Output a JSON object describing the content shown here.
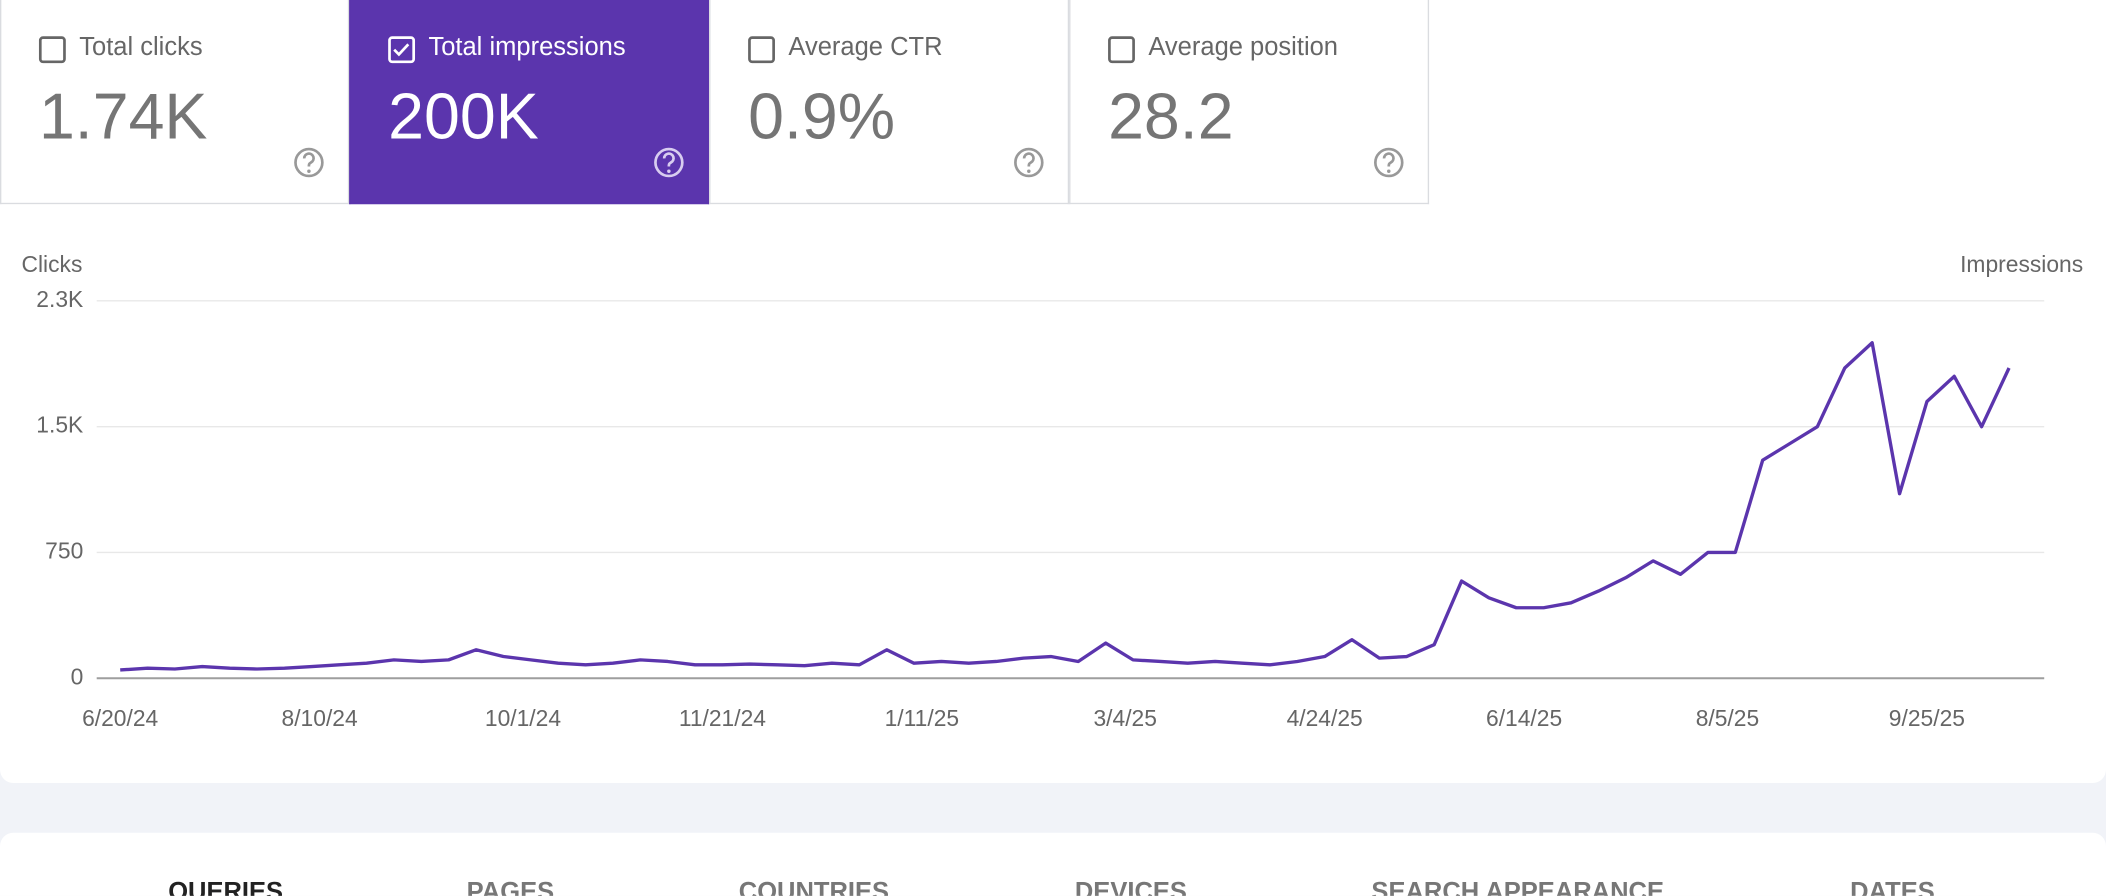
{
  "metrics": [
    {
      "label": "Total clicks",
      "value": "1.74K",
      "selected": false
    },
    {
      "label": "Total impressions",
      "value": "200K",
      "selected": true
    },
    {
      "label": "Average CTR",
      "value": "0.9%",
      "selected": false
    },
    {
      "label": "Average position",
      "value": "28.2",
      "selected": false
    }
  ],
  "chart_data": {
    "type": "line",
    "ylabel": "Clicks",
    "y2label": "Impressions",
    "color": "#5b35ad",
    "x": [
      "6/20/24",
      "6/27/24",
      "7/4/24",
      "7/11/24",
      "7/18/24",
      "7/25/24",
      "8/1/24",
      "8/8/24",
      "8/15/24",
      "8/22/24",
      "8/29/24",
      "9/5/24",
      "9/12/24",
      "9/19/24",
      "9/26/24",
      "10/3/24",
      "10/10/24",
      "10/17/24",
      "10/24/24",
      "10/31/24",
      "11/7/24",
      "11/14/24",
      "11/21/24",
      "11/28/24",
      "12/5/24",
      "12/12/24",
      "12/19/24",
      "12/26/24",
      "1/2/25",
      "1/9/25",
      "1/16/25",
      "1/23/25",
      "1/30/25",
      "2/6/25",
      "2/13/25",
      "2/20/25",
      "2/27/25",
      "3/6/25",
      "3/13/25",
      "3/20/25",
      "3/27/25",
      "4/3/25",
      "4/10/25",
      "4/17/25",
      "4/24/25",
      "5/1/25",
      "5/8/25",
      "5/15/25",
      "5/22/25",
      "5/29/25",
      "6/5/25",
      "6/12/25",
      "6/19/25",
      "6/26/25",
      "7/3/25",
      "7/10/25",
      "7/17/25",
      "7/24/25",
      "7/31/25",
      "8/7/25",
      "8/14/25",
      "8/21/25",
      "8/28/25",
      "9/4/25",
      "9/11/25",
      "9/18/25",
      "9/25/25",
      "10/2/25",
      "10/9/25",
      "10/16/25"
    ],
    "values": [
      50,
      60,
      55,
      70,
      60,
      55,
      60,
      70,
      80,
      90,
      110,
      100,
      110,
      170,
      130,
      110,
      90,
      80,
      90,
      110,
      100,
      80,
      80,
      85,
      80,
      75,
      90,
      80,
      170,
      90,
      100,
      90,
      100,
      120,
      130,
      100,
      210,
      110,
      100,
      90,
      100,
      90,
      80,
      100,
      130,
      230,
      120,
      130,
      200,
      580,
      480,
      420,
      420,
      450,
      520,
      600,
      700,
      620,
      750,
      750,
      1300,
      1400,
      1500,
      1850,
      2000,
      1100,
      1650,
      1800,
      1500,
      1850
    ],
    "xlim": [
      "6/14/24",
      "10/25/25"
    ],
    "xticks": [
      "6/20/24",
      "8/10/24",
      "10/1/24",
      "11/21/24",
      "1/11/25",
      "3/4/25",
      "4/24/25",
      "6/14/25",
      "8/5/25",
      "9/25/25"
    ],
    "ylim": [
      0,
      2250
    ],
    "yticks": [
      0,
      750,
      {
        "value": 1500,
        "label": "1.5K"
      },
      {
        "value": 2250,
        "label": "2.3K"
      }
    ],
    "grid": true
  },
  "tabs": [
    "QUERIES",
    "PAGES",
    "COUNTRIES",
    "DEVICES",
    "SEARCH APPEARANCE",
    "DATES"
  ]
}
